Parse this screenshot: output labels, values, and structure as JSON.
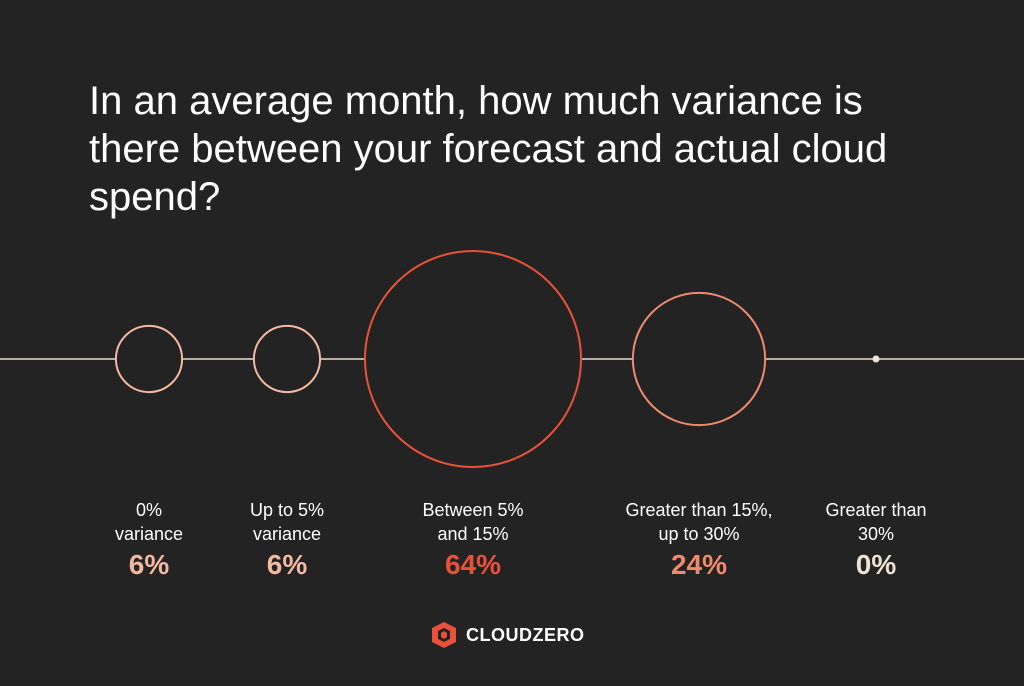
{
  "title": "In an average month, how much variance is there between your forecast and actual cloud spend?",
  "brand": {
    "name": "CLOUDZERO",
    "icon": "cloudzero-logo-icon",
    "accent": "#E8523A"
  },
  "chart_data": {
    "type": "bubble",
    "categories": [
      "0%\nvariance",
      "Up to 5%\nvariance",
      "Between 5%\nand 15%",
      "Greater than 15%,\nup to 30%",
      "Greater than\n30%"
    ],
    "values": [
      6,
      6,
      64,
      24,
      0
    ],
    "value_labels": [
      "6%",
      "6%",
      "64%",
      "24%",
      "0%"
    ],
    "colors": [
      "#F2B8A2",
      "#F2B8A2",
      "#E8523A",
      "#EF8A6E",
      "#EDE3D2"
    ],
    "line_color": "#E6DCCB",
    "legend": "none"
  }
}
